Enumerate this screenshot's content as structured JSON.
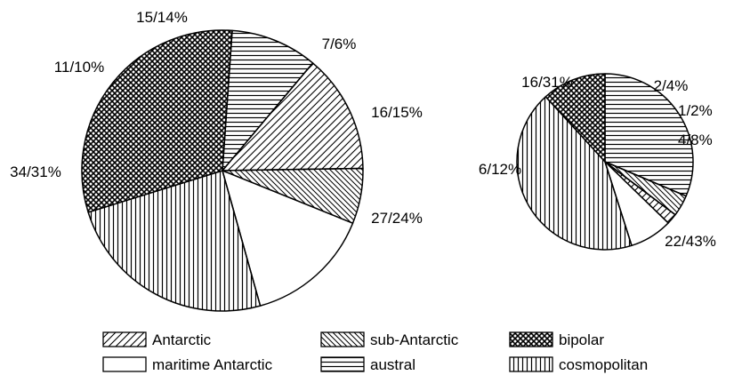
{
  "chart_data": [
    {
      "type": "pie",
      "slices": [
        {
          "category": "Antarctic",
          "count": 15,
          "percent": 14,
          "label": "15/14%"
        },
        {
          "category": "sub-Antarctic",
          "count": 7,
          "percent": 6,
          "label": "7/6%"
        },
        {
          "category": "maritime Antarctic",
          "count": 16,
          "percent": 15,
          "label": "16/15%"
        },
        {
          "category": "cosmopolitan",
          "count": 27,
          "percent": 24,
          "label": "27/24%"
        },
        {
          "category": "bipolar",
          "count": 34,
          "percent": 31,
          "label": "34/31%"
        },
        {
          "category": "austral",
          "count": 11,
          "percent": 10,
          "label": "11/10%"
        }
      ]
    },
    {
      "type": "pie",
      "slices": [
        {
          "category": "austral",
          "count": 16,
          "percent": 31,
          "label": "16/31%"
        },
        {
          "category": "sub-Antarctic",
          "count": 2,
          "percent": 4,
          "label": "2/4%"
        },
        {
          "category": "Antarctic",
          "count": 1,
          "percent": 2,
          "label": "1/2%"
        },
        {
          "category": "maritime Antarctic",
          "count": 4,
          "percent": 8,
          "label": "4/8%"
        },
        {
          "category": "cosmopolitan",
          "count": 22,
          "percent": 43,
          "label": "22/43%"
        },
        {
          "category": "bipolar",
          "count": 6,
          "percent": 12,
          "label": "6/12%"
        }
      ]
    }
  ],
  "legend": [
    {
      "key": "Antarctic",
      "label": "Antarctic",
      "pattern": "diag-right"
    },
    {
      "key": "sub-Antarctic",
      "label": "sub-Antarctic",
      "pattern": "diag-left"
    },
    {
      "key": "bipolar",
      "label": "bipolar",
      "pattern": "crosshatch"
    },
    {
      "key": "maritime Antarctic",
      "label": "maritime Antarctic",
      "pattern": "blank"
    },
    {
      "key": "austral",
      "label": "austral",
      "pattern": "horizontal"
    },
    {
      "key": "cosmopolitan",
      "label": "cosmopolitan",
      "pattern": "vertical"
    }
  ],
  "colors": {
    "ink": "#000000",
    "background": "#ffffff"
  }
}
